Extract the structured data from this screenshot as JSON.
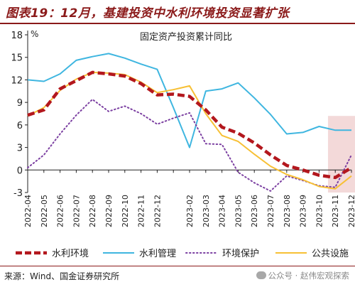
{
  "header": {
    "title": "图表19：12月，基建投资中水利环境投资显著扩张"
  },
  "footer": {
    "source": "来源：Wind、国金证券研究所",
    "watermark": "公众号 · 赵伟宏观探索"
  },
  "colors": {
    "title": "#8b1a1a",
    "shade": "#f3d9d9",
    "series": [
      "#b3171d",
      "#3fb6e0",
      "#7b3fa1",
      "#f7c035"
    ]
  },
  "chart_data": {
    "type": "line",
    "title": "固定资产投资累计同比",
    "ylabel": "%",
    "xlabel": "",
    "ylim": [
      -3,
      18
    ],
    "yticks": [
      -3,
      0,
      3,
      6,
      9,
      12,
      15,
      18
    ],
    "grid": false,
    "legend": "bottom",
    "shaded_range": [
      "2023-11",
      "2023-12"
    ],
    "categories": [
      "2022-04",
      "2022-05",
      "2022-06",
      "2022-07",
      "2022-08",
      "2022-09",
      "2022-10",
      "2022-11",
      "2022-12",
      "2023-01",
      "2023-02",
      "2023-03",
      "2023-04",
      "2023-05",
      "2023-06",
      "2023-07",
      "2023-08",
      "2023-09",
      "2023-10",
      "2023-11",
      "2023-12"
    ],
    "tick_labels": [
      "2022-04",
      "2022-05",
      "2022-06",
      "2022-07",
      "2022-08",
      "2022-09",
      "2022-10",
      "2022-11",
      "2022-12",
      "2023-02",
      "2023-03",
      "2023-04",
      "2023-05",
      "2023-06",
      "2023-07",
      "2023-08",
      "2023-09",
      "2023-10",
      "2023-11",
      "2023-12"
    ],
    "series": [
      {
        "name": "水利环境",
        "style": "dashed-thick",
        "values": [
          7.3,
          8.0,
          10.8,
          11.9,
          13.0,
          12.8,
          12.5,
          11.5,
          10.0,
          10.1,
          9.8,
          8.0,
          5.7,
          4.9,
          3.6,
          2.0,
          0.6,
          0.0,
          -0.7,
          -1.0,
          0.3
        ]
      },
      {
        "name": "水利管理",
        "style": "solid",
        "values": [
          12.0,
          11.8,
          12.8,
          14.6,
          15.1,
          15.5,
          14.9,
          14.1,
          13.4,
          8.3,
          3.0,
          10.5,
          10.8,
          11.6,
          9.6,
          7.4,
          4.8,
          5.0,
          5.8,
          5.3,
          5.3
        ]
      },
      {
        "name": "环境保护",
        "style": "dotted",
        "values": [
          0.3,
          2.0,
          4.8,
          7.3,
          9.4,
          7.8,
          8.5,
          7.5,
          6.1,
          6.9,
          7.6,
          3.5,
          3.4,
          -0.3,
          -1.7,
          -2.8,
          -0.8,
          -1.4,
          -2.1,
          -2.3,
          2.0
        ]
      },
      {
        "name": "公共设施",
        "style": "solid",
        "values": [
          7.2,
          8.3,
          10.6,
          12.1,
          13.0,
          12.9,
          12.7,
          11.7,
          10.3,
          10.7,
          11.2,
          7.5,
          4.6,
          3.8,
          2.1,
          0.5,
          -0.6,
          -1.3,
          -2.2,
          -2.5,
          -0.8
        ]
      }
    ]
  }
}
